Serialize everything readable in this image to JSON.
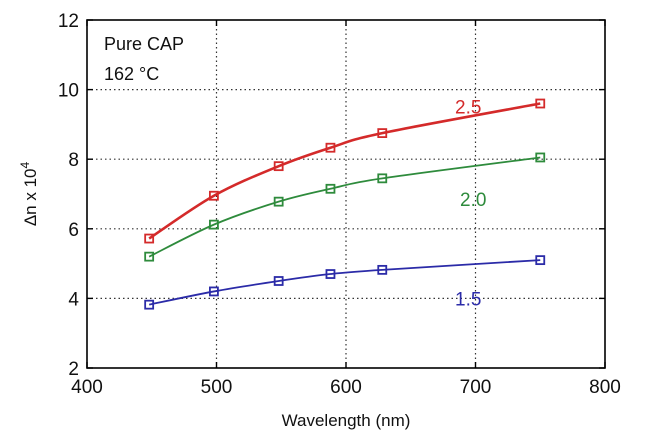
{
  "chart_data": {
    "type": "line",
    "xlabel": "Wavelength (nm)",
    "ylabel": "Δn x 10",
    "ylabel_sup": "4",
    "xlim": [
      400,
      800
    ],
    "ylim": [
      2,
      12
    ],
    "xticks": [
      400,
      500,
      600,
      700,
      800
    ],
    "yticks": [
      2,
      4,
      6,
      8,
      10,
      12
    ],
    "grid": true,
    "annotations": [
      "Pure CAP",
      "162 °C"
    ],
    "series": [
      {
        "name": "2.5",
        "color": "#d42a2a",
        "x": [
          448,
          498,
          548,
          588,
          628,
          750
        ],
        "y": [
          5.72,
          6.95,
          7.8,
          8.33,
          8.75,
          9.6
        ]
      },
      {
        "name": "2.0",
        "color": "#2e8b3c",
        "x": [
          448,
          498,
          548,
          588,
          628,
          750
        ],
        "y": [
          5.2,
          6.12,
          6.78,
          7.15,
          7.45,
          8.05
        ]
      },
      {
        "name": "1.5",
        "color": "#2b2ba8",
        "x": [
          448,
          498,
          548,
          588,
          628,
          750
        ],
        "y": [
          3.82,
          4.2,
          4.5,
          4.7,
          4.82,
          5.1
        ]
      }
    ]
  }
}
